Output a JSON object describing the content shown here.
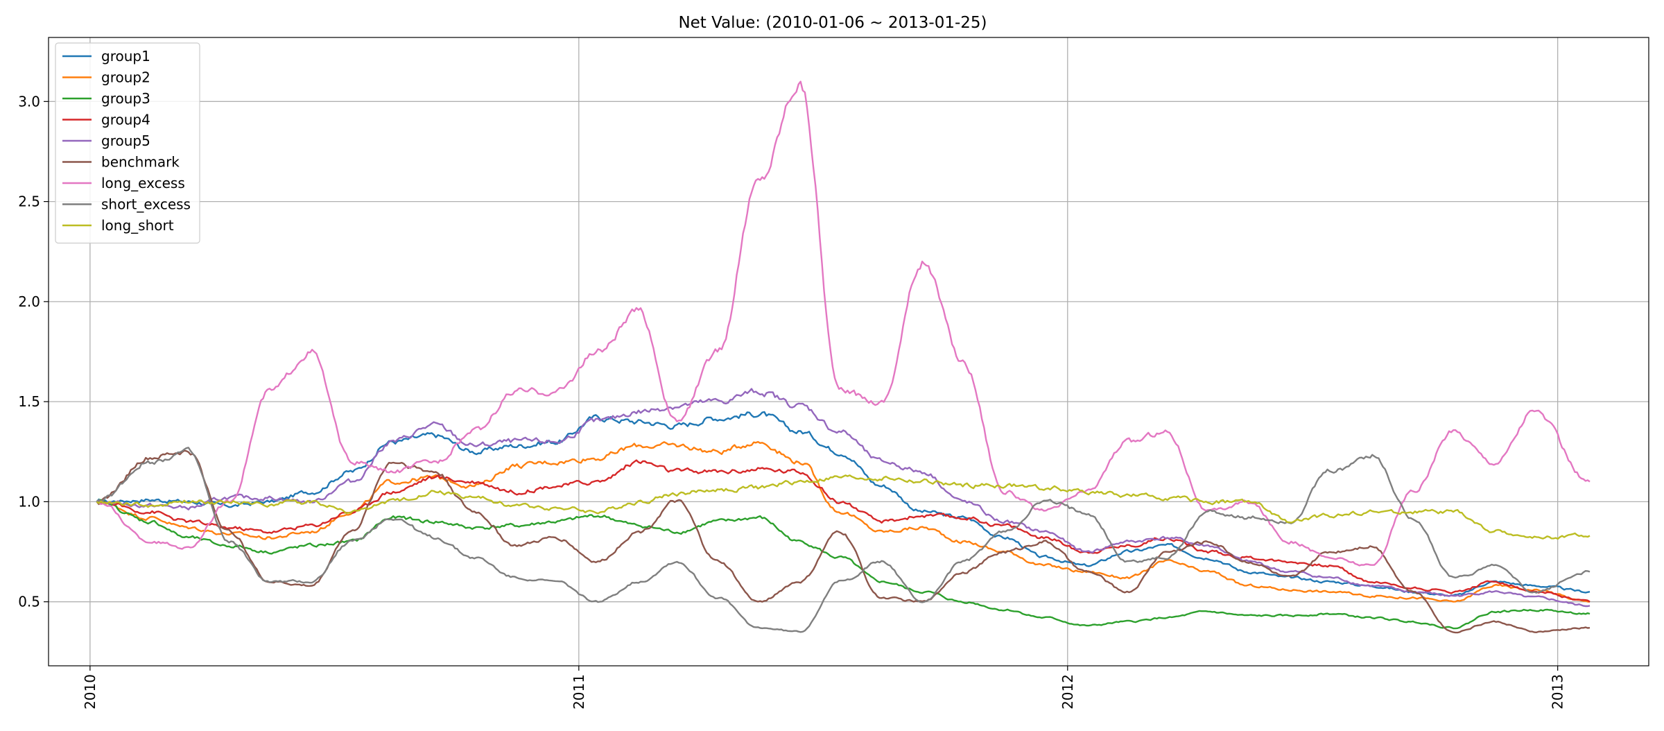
{
  "chart_data": {
    "type": "line",
    "title": "Net Value: (2010-01-06 ~ 2013-01-25)",
    "xlabel": "",
    "ylabel": "",
    "xlim": [
      "2009-12-01",
      "2013-03-10"
    ],
    "ylim": [
      0.18,
      3.32
    ],
    "x_ticks": [
      "2010-01-01",
      "2011-01-01",
      "2012-01-01",
      "2013-01-01"
    ],
    "x_tick_labels": [
      "2010",
      "2011",
      "2012",
      "2013"
    ],
    "y_ticks": [
      0.5,
      1.0,
      1.5,
      2.0,
      2.5,
      3.0
    ],
    "y_tick_labels": [
      "0.5",
      "1.0",
      "1.5",
      "2.0",
      "2.5",
      "3.0"
    ],
    "grid": true,
    "legend_position": "upper-left",
    "x": [
      "2010-01-06",
      "2010-02-15",
      "2010-03-15",
      "2010-04-15",
      "2010-05-15",
      "2010-06-15",
      "2010-07-15",
      "2010-08-15",
      "2010-09-15",
      "2010-10-15",
      "2010-11-15",
      "2010-12-15",
      "2011-01-15",
      "2011-02-15",
      "2011-03-15",
      "2011-04-15",
      "2011-05-15",
      "2011-06-15",
      "2011-07-15",
      "2011-08-15",
      "2011-09-15",
      "2011-10-15",
      "2011-11-15",
      "2011-12-15",
      "2012-01-15",
      "2012-02-15",
      "2012-03-15",
      "2012-04-15",
      "2012-05-15",
      "2012-06-15",
      "2012-07-15",
      "2012-08-15",
      "2012-09-15",
      "2012-10-15",
      "2012-11-15",
      "2012-12-15",
      "2013-01-25"
    ],
    "series": [
      {
        "name": "group1",
        "color": "#1f77b4",
        "values": [
          1.0,
          1.01,
          1.0,
          0.98,
          1.0,
          1.05,
          1.15,
          1.3,
          1.33,
          1.25,
          1.28,
          1.3,
          1.42,
          1.4,
          1.38,
          1.42,
          1.44,
          1.35,
          1.25,
          1.08,
          0.95,
          0.92,
          0.82,
          0.72,
          0.68,
          0.75,
          0.78,
          0.72,
          0.65,
          0.62,
          0.6,
          0.58,
          0.55,
          0.53,
          0.6,
          0.58,
          0.55
        ]
      },
      {
        "name": "group2",
        "color": "#ff7f0e",
        "values": [
          1.0,
          0.92,
          0.87,
          0.84,
          0.82,
          0.85,
          0.95,
          1.1,
          1.12,
          1.08,
          1.18,
          1.2,
          1.22,
          1.28,
          1.28,
          1.25,
          1.3,
          1.2,
          0.95,
          0.85,
          0.87,
          0.8,
          0.75,
          0.68,
          0.65,
          0.62,
          0.7,
          0.65,
          0.58,
          0.56,
          0.55,
          0.53,
          0.52,
          0.5,
          0.58,
          0.56,
          0.5
        ]
      },
      {
        "name": "group3",
        "color": "#2ca02c",
        "values": [
          1.0,
          0.9,
          0.82,
          0.78,
          0.75,
          0.78,
          0.8,
          0.92,
          0.9,
          0.87,
          0.88,
          0.9,
          0.93,
          0.88,
          0.85,
          0.9,
          0.92,
          0.8,
          0.72,
          0.6,
          0.55,
          0.5,
          0.46,
          0.42,
          0.38,
          0.4,
          0.42,
          0.45,
          0.43,
          0.43,
          0.44,
          0.42,
          0.4,
          0.37,
          0.45,
          0.46,
          0.44
        ]
      },
      {
        "name": "group4",
        "color": "#d62728",
        "values": [
          1.0,
          0.95,
          0.9,
          0.87,
          0.85,
          0.88,
          0.95,
          1.05,
          1.12,
          1.1,
          1.05,
          1.08,
          1.1,
          1.2,
          1.15,
          1.15,
          1.16,
          1.15,
          1.0,
          0.9,
          0.93,
          0.92,
          0.88,
          0.82,
          0.75,
          0.78,
          0.82,
          0.75,
          0.72,
          0.7,
          0.68,
          0.6,
          0.57,
          0.55,
          0.6,
          0.55,
          0.5
        ]
      },
      {
        "name": "group5",
        "color": "#9467bd",
        "values": [
          1.0,
          0.98,
          0.97,
          1.02,
          1.02,
          1.0,
          1.1,
          1.3,
          1.38,
          1.28,
          1.3,
          1.3,
          1.4,
          1.45,
          1.48,
          1.5,
          1.55,
          1.48,
          1.35,
          1.2,
          1.15,
          1.0,
          0.9,
          0.85,
          0.75,
          0.8,
          0.82,
          0.78,
          0.7,
          0.65,
          0.62,
          0.58,
          0.55,
          0.53,
          0.55,
          0.52,
          0.48
        ]
      },
      {
        "name": "benchmark",
        "color": "#8c564b",
        "values": [
          1.0,
          1.22,
          1.25,
          0.85,
          0.6,
          0.58,
          0.85,
          1.2,
          1.15,
          0.95,
          0.78,
          0.82,
          0.7,
          0.85,
          1.0,
          0.7,
          0.5,
          0.6,
          0.85,
          0.52,
          0.5,
          0.65,
          0.75,
          0.8,
          0.65,
          0.55,
          0.75,
          0.8,
          0.7,
          0.62,
          0.75,
          0.78,
          0.55,
          0.35,
          0.4,
          0.35,
          0.37
        ]
      },
      {
        "name": "long_excess",
        "color": "#e377c2",
        "values": [
          1.0,
          0.8,
          0.77,
          1.0,
          1.55,
          1.75,
          1.2,
          1.15,
          1.2,
          1.35,
          1.55,
          1.55,
          1.75,
          1.95,
          1.4,
          1.75,
          2.6,
          3.1,
          1.55,
          1.5,
          2.2,
          1.7,
          1.05,
          0.95,
          1.05,
          1.3,
          1.35,
          0.95,
          1.0,
          0.8,
          0.72,
          0.68,
          1.05,
          1.35,
          1.2,
          1.45,
          1.1
        ]
      },
      {
        "name": "short_excess",
        "color": "#7f7f7f",
        "values": [
          1.0,
          1.2,
          1.25,
          0.8,
          0.6,
          0.6,
          0.8,
          0.92,
          0.82,
          0.72,
          0.62,
          0.6,
          0.5,
          0.6,
          0.7,
          0.52,
          0.37,
          0.35,
          0.6,
          0.7,
          0.5,
          0.7,
          0.85,
          1.0,
          0.95,
          0.7,
          0.72,
          0.95,
          0.92,
          0.9,
          1.15,
          1.23,
          0.92,
          0.62,
          0.68,
          0.55,
          0.65
        ]
      },
      {
        "name": "long_short",
        "color": "#bcbd22",
        "values": [
          1.0,
          0.98,
          1.0,
          1.0,
          0.99,
          1.0,
          0.95,
          1.0,
          1.05,
          1.02,
          0.98,
          0.97,
          0.95,
          1.0,
          1.04,
          1.06,
          1.07,
          1.1,
          1.12,
          1.12,
          1.1,
          1.08,
          1.08,
          1.07,
          1.05,
          1.03,
          1.02,
          1.0,
          1.0,
          0.9,
          0.93,
          0.95,
          0.95,
          0.95,
          0.85,
          0.82,
          0.83
        ]
      }
    ]
  }
}
